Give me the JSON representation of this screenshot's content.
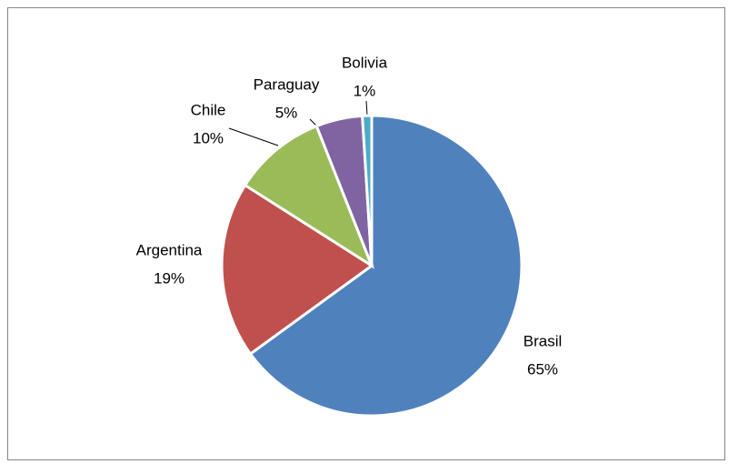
{
  "chart_data": {
    "type": "pie",
    "categories": [
      "Brasil",
      "Argentina",
      "Chile",
      "Paraguay",
      "Bolivia"
    ],
    "values": [
      65,
      19,
      10,
      5,
      1
    ],
    "value_labels": [
      "65%",
      "19%",
      "10%",
      "5%",
      "1%"
    ],
    "colors": [
      "#4f81bd",
      "#c0504d",
      "#9bbb59",
      "#8064a2",
      "#4bacc6"
    ]
  }
}
